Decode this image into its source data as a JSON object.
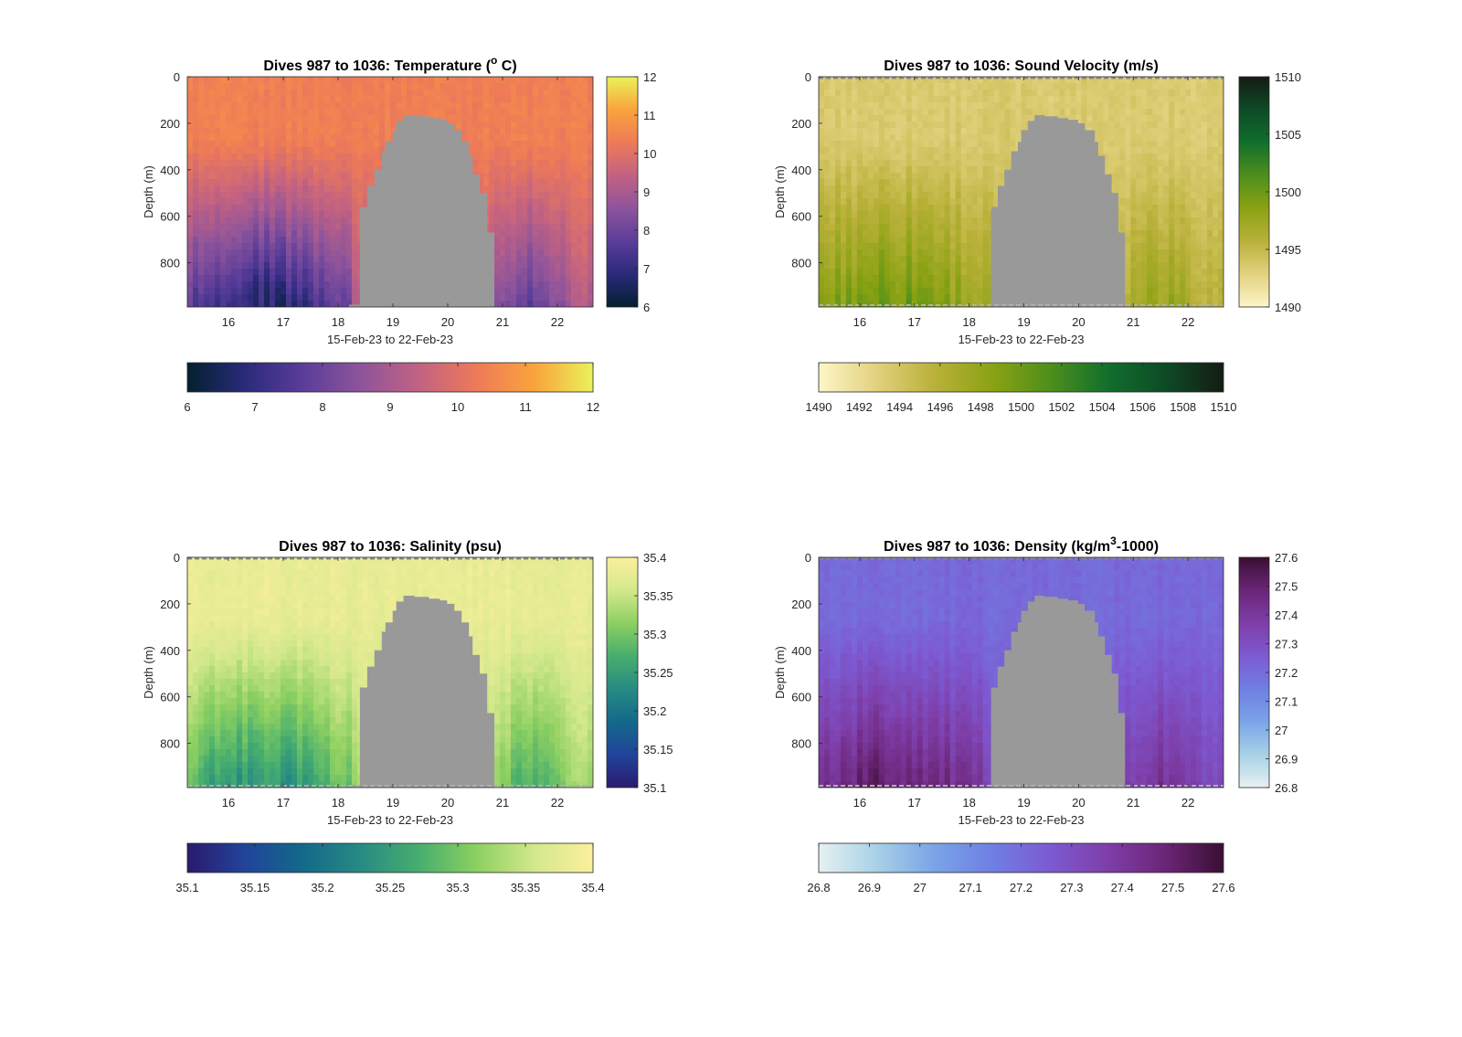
{
  "figure": {
    "background": "#ffffff",
    "gap_color": "#999999"
  },
  "chart_data": [
    {
      "type": "heatmap",
      "id": "temperature",
      "title_main": "Dives 987 to 1036: Temperature (",
      "title_sup": "o",
      "title_end": " C)",
      "xlabel": "15-Feb-23 to 22-Feb-23",
      "ylabel": "Depth (m)",
      "xticks": [
        "16",
        "17",
        "18",
        "19",
        "20",
        "21",
        "22"
      ],
      "yticks": [
        "0",
        "200",
        "400",
        "600",
        "800"
      ],
      "xlim": [
        15.25,
        22.65
      ],
      "ylim": [
        0,
        990
      ],
      "data_gap": {
        "x_start": 18.2,
        "x_end": 20.85
      },
      "colorbar_right_ticks": [
        "12",
        "11",
        "10",
        "9",
        "8",
        "7",
        "6"
      ],
      "colorbar_bottom_ticks": [
        "6",
        "7",
        "8",
        "9",
        "10",
        "11",
        "12"
      ],
      "clim": [
        6,
        12
      ],
      "colormap": [
        "#03202e",
        "#2a2a7a",
        "#5b3d9a",
        "#8e549b",
        "#c26282",
        "#ee7a58",
        "#f9a43c",
        "#e9f25a"
      ],
      "surface_value": 10.4,
      "deep_value": 7.0,
      "surface_dash": false
    },
    {
      "type": "heatmap",
      "id": "sound-velocity",
      "title_main": "Dives 987 to 1036: Sound Velocity (m/s)",
      "title_sup": "",
      "title_end": "",
      "xlabel": "15-Feb-23 to 22-Feb-23",
      "ylabel": "Depth (m)",
      "xticks": [
        "16",
        "17",
        "18",
        "19",
        "20",
        "21",
        "22"
      ],
      "yticks": [
        "0",
        "200",
        "400",
        "600",
        "800"
      ],
      "xlim": [
        15.25,
        22.65
      ],
      "ylim": [
        0,
        990
      ],
      "data_gap": {
        "x_start": 18.4,
        "x_end": 20.85
      },
      "colorbar_right_ticks": [
        "1510",
        "1505",
        "1500",
        "1495",
        "1490"
      ],
      "colorbar_bottom_ticks": [
        "1490",
        "1492",
        "1494",
        "1496",
        "1498",
        "1500",
        "1502",
        "1504",
        "1506",
        "1508",
        "1510"
      ],
      "clim": [
        1490,
        1510
      ],
      "colormap": [
        "#fdf6c8",
        "#e2d17e",
        "#b9b13a",
        "#8ba213",
        "#4e8f1c",
        "#116f2c",
        "#0e4a26",
        "#141c12"
      ],
      "surface_value": 1493.5,
      "deep_value": 1499.5,
      "surface_dash": true
    },
    {
      "type": "heatmap",
      "id": "salinity",
      "title_main": "Dives 987 to 1036: Salinity (psu)",
      "title_sup": "",
      "title_end": "",
      "xlabel": "15-Feb-23 to 22-Feb-23",
      "ylabel": "Depth (m)",
      "xticks": [
        "16",
        "17",
        "18",
        "19",
        "20",
        "21",
        "22"
      ],
      "yticks": [
        "0",
        "200",
        "400",
        "600",
        "800"
      ],
      "xlim": [
        15.25,
        22.65
      ],
      "ylim": [
        0,
        990
      ],
      "data_gap": {
        "x_start": 18.2,
        "x_end": 20.85
      },
      "colorbar_right_ticks": [
        "35.4",
        "35.35",
        "35.3",
        "35.25",
        "35.2",
        "35.15",
        "35.1"
      ],
      "colorbar_bottom_ticks": [
        "35.1",
        "35.15",
        "35.2",
        "35.25",
        "35.3",
        "35.35",
        "35.4"
      ],
      "clim": [
        35.1,
        35.4
      ],
      "colormap": [
        "#2a1a6e",
        "#21449a",
        "#13698a",
        "#278b83",
        "#47ae6e",
        "#8dd061",
        "#d4e88c",
        "#fbef9d"
      ],
      "surface_value": 35.38,
      "deep_value": 35.25,
      "surface_dash": true
    },
    {
      "type": "heatmap",
      "id": "density",
      "title_main": "Dives 987 to 1036: Density (kg/m",
      "title_sup": "3",
      "title_end": "-1000)",
      "xlabel": "15-Feb-23 to 22-Feb-23",
      "ylabel": "Depth (m)",
      "xticks": [
        "16",
        "17",
        "18",
        "19",
        "20",
        "21",
        "22"
      ],
      "yticks": [
        "0",
        "200",
        "400",
        "600",
        "800"
      ],
      "xlim": [
        15.25,
        22.65
      ],
      "ylim": [
        0,
        990
      ],
      "data_gap": {
        "x_start": 18.4,
        "x_end": 20.85
      },
      "colorbar_right_ticks": [
        "27.6",
        "27.5",
        "27.4",
        "27.3",
        "27.2",
        "27.1",
        "27",
        "26.9",
        "26.8"
      ],
      "colorbar_bottom_ticks": [
        "26.8",
        "26.9",
        "27",
        "27.1",
        "27.2",
        "27.3",
        "27.4",
        "27.5",
        "27.6"
      ],
      "clim": [
        26.8,
        27.6
      ],
      "colormap": [
        "#e6f1f2",
        "#a8d1e6",
        "#7aa4e8",
        "#6f7fe2",
        "#7d5ad2",
        "#7e3ea8",
        "#6b2577",
        "#3a0f33"
      ],
      "surface_value": 27.21,
      "deep_value": 27.48,
      "surface_dash": true
    }
  ]
}
